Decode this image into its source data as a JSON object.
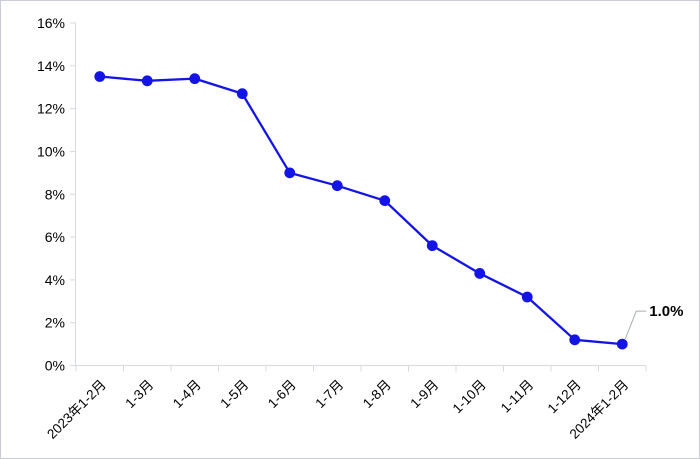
{
  "figure": {
    "background": "#ffffff",
    "border_color": "#c9ccd8"
  },
  "chart_data": {
    "type": "line",
    "title": "",
    "xlabel": "",
    "ylabel": "",
    "categories": [
      "2023年1-2月",
      "1-3月",
      "1-4月",
      "1-5月",
      "1-6月",
      "1-7月",
      "1-8月",
      "1-9月",
      "1-10月",
      "1-11月",
      "1-12月",
      "2024年1-2月"
    ],
    "values": [
      13.5,
      13.3,
      13.4,
      12.7,
      9.0,
      8.4,
      7.7,
      5.6,
      4.3,
      3.2,
      1.2,
      1.0
    ],
    "unit": "%",
    "ylim": [
      0,
      16
    ],
    "y_tick_step": 2,
    "y_tick_labels": [
      "0%",
      "2%",
      "4%",
      "6%",
      "8%",
      "10%",
      "12%",
      "14%",
      "16%"
    ],
    "grid": false,
    "legend": false,
    "marker": "circle",
    "annotation": {
      "text": "1.0%",
      "point_index": 11
    },
    "colors": {
      "line": "#1414e6",
      "marker": "#1414e6",
      "axis": "#d6d9de",
      "tick": "#d6d9de",
      "label_text": "#000000",
      "leader_line": "#a8adb5"
    }
  }
}
